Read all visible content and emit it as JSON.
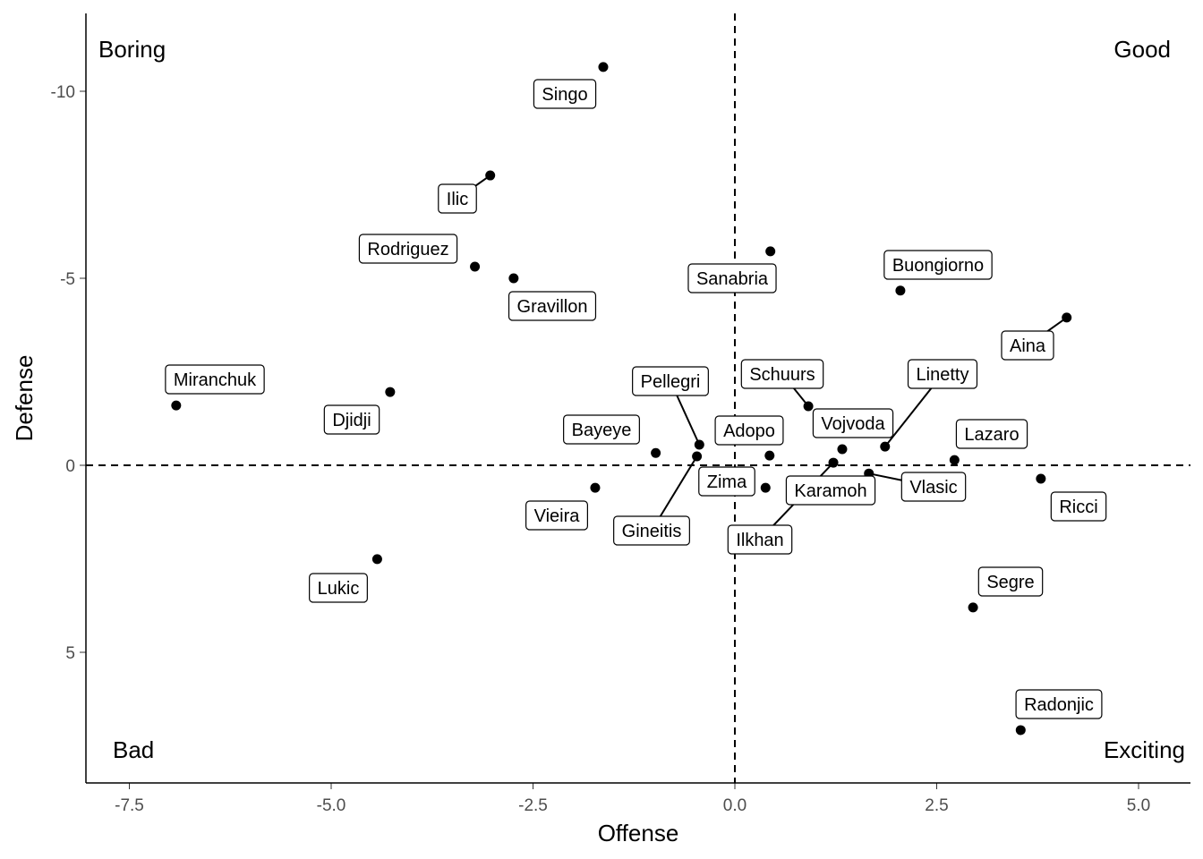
{
  "chart_data": {
    "type": "scatter",
    "xlabel": "Offense",
    "ylabel": "Defense",
    "xlim": [
      -8.3,
      5.7
    ],
    "ylim": [
      -12.1,
      8.5
    ],
    "y_reversed": true,
    "xticks": [
      "-7.5",
      "-5.0",
      "-2.5",
      "0.0",
      "2.5",
      "5.0"
    ],
    "xtick_values": [
      -7.5,
      -5,
      -2.5,
      0,
      2.5,
      5
    ],
    "yticks": [
      "-10",
      "-5",
      "0",
      "5"
    ],
    "ytick_values": [
      -10,
      -5,
      0,
      5
    ],
    "grid": false,
    "reference_lines": {
      "x": 0,
      "y": 0,
      "style": "dashed"
    },
    "quadrant_labels": {
      "top_left": "Boring",
      "top_right": "Good",
      "bottom_left": "Bad",
      "bottom_right": "Exciting"
    },
    "points": [
      {
        "name": "Singo",
        "x": -1.63,
        "y": -10.65
      },
      {
        "name": "Ilic",
        "x": -3.03,
        "y": -7.75
      },
      {
        "name": "Rodriguez",
        "x": -3.22,
        "y": -5.31
      },
      {
        "name": "Gravillon",
        "x": -2.74,
        "y": -5.0
      },
      {
        "name": "Sanabria",
        "x": 0.44,
        "y": -5.72
      },
      {
        "name": "Buongiorno",
        "x": 2.05,
        "y": -4.67
      },
      {
        "name": "Aina",
        "x": 4.11,
        "y": -3.95
      },
      {
        "name": "Miranchuk",
        "x": -6.92,
        "y": -1.6
      },
      {
        "name": "Djidji",
        "x": -4.27,
        "y": -1.96
      },
      {
        "name": "Pellegri",
        "x": -0.44,
        "y": -0.55
      },
      {
        "name": "Bayeye",
        "x": -0.98,
        "y": -0.33
      },
      {
        "name": "Gineitis",
        "x": -0.47,
        "y": -0.24
      },
      {
        "name": "Adopo",
        "x": 0.43,
        "y": -0.26
      },
      {
        "name": "Schuurs",
        "x": 0.91,
        "y": -1.58
      },
      {
        "name": "Vojvoda",
        "x": 1.33,
        "y": -0.43
      },
      {
        "name": "Linetty",
        "x": 1.86,
        "y": -0.5
      },
      {
        "name": "Zima",
        "x": 0.38,
        "y": 0.6
      },
      {
        "name": "Karamoh",
        "x": 1.19,
        "y": 0.67
      },
      {
        "name": "Ilkhan",
        "x": 1.22,
        "y": -0.07
      },
      {
        "name": "Vlasic",
        "x": 1.66,
        "y": 0.22
      },
      {
        "name": "Lazaro",
        "x": 2.72,
        "y": -0.14
      },
      {
        "name": "Ricci",
        "x": 3.79,
        "y": 0.36
      },
      {
        "name": "Vieira",
        "x": -1.73,
        "y": 0.6
      },
      {
        "name": "Lukic",
        "x": -4.43,
        "y": 2.51
      },
      {
        "name": "Segre",
        "x": 2.95,
        "y": 3.8
      },
      {
        "name": "Radonjic",
        "x": 3.54,
        "y": 7.08
      }
    ]
  }
}
